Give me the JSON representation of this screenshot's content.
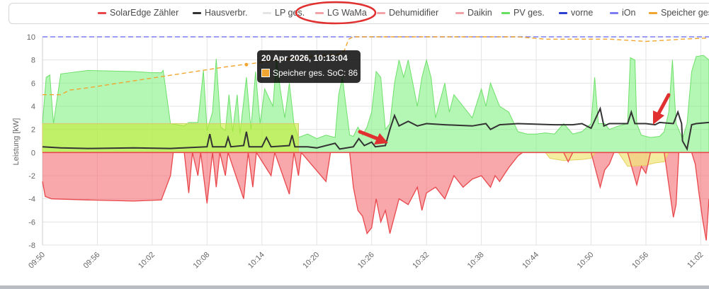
{
  "chart_data": {
    "type": "area",
    "ylabel": "Leistung [kW]",
    "ylim": [
      -8,
      10
    ],
    "y_ticks": [
      "10",
      "8",
      "6",
      "4",
      "2",
      "0",
      "-2",
      "-4",
      "-6",
      "-8"
    ],
    "x_ticks": [
      "09:50",
      "09:56",
      "10:02",
      "10:08",
      "10:14",
      "10:20",
      "10:26",
      "10:32",
      "10:38",
      "10:44",
      "10:50",
      "10:56",
      "11:02"
    ],
    "x_range_minutes": [
      0,
      72.9
    ],
    "grid": true,
    "legend_position": "top",
    "series": [
      {
        "name": "SolarEdge Zähler",
        "color": "#e8474c",
        "kind": "grid-area",
        "points": [
          [
            0,
            -2.5
          ],
          [
            0.3,
            -3.8
          ],
          [
            1,
            -4.0
          ],
          [
            5,
            -4.1
          ],
          [
            10,
            -4.2
          ],
          [
            13,
            -4.1
          ],
          [
            14,
            -2
          ],
          [
            14.3,
            0
          ],
          [
            15.5,
            0
          ],
          [
            16,
            -3.5
          ],
          [
            16.4,
            0
          ],
          [
            17,
            -2
          ],
          [
            17.3,
            0
          ],
          [
            18,
            -4.4
          ],
          [
            18.6,
            0
          ],
          [
            19,
            -3
          ],
          [
            19.4,
            0
          ],
          [
            20,
            -2
          ],
          [
            20.3,
            0
          ],
          [
            22,
            -4
          ],
          [
            22.5,
            0
          ],
          [
            23,
            -3
          ],
          [
            23.4,
            0
          ],
          [
            25,
            -2
          ],
          [
            25.4,
            0
          ],
          [
            27,
            -3.6
          ],
          [
            27.5,
            0
          ],
          [
            28,
            -2
          ],
          [
            28.3,
            0
          ],
          [
            31,
            -2.5
          ],
          [
            31.5,
            0
          ],
          [
            33.6,
            0
          ],
          [
            34,
            -3
          ],
          [
            34.5,
            -5
          ],
          [
            35,
            -5.5
          ],
          [
            35.5,
            -7
          ],
          [
            36,
            -6.5
          ],
          [
            36.5,
            -4
          ],
          [
            37,
            -6
          ],
          [
            37.5,
            -5
          ],
          [
            38,
            -7
          ],
          [
            39,
            -4
          ],
          [
            40,
            -4.5
          ],
          [
            41,
            -3
          ],
          [
            41.5,
            -5
          ],
          [
            42,
            -3.5
          ],
          [
            43,
            -3
          ],
          [
            44,
            -4
          ],
          [
            45,
            -2
          ],
          [
            46,
            -3
          ],
          [
            47,
            -2.3
          ],
          [
            48,
            -2
          ],
          [
            49,
            -3
          ],
          [
            49.5,
            -2
          ],
          [
            50,
            -2.5
          ],
          [
            51,
            -1.3
          ],
          [
            52,
            -0.3
          ],
          [
            52.5,
            0
          ],
          [
            57,
            0
          ],
          [
            57.5,
            -0.8
          ],
          [
            58,
            0
          ],
          [
            60,
            0
          ],
          [
            61,
            -3
          ],
          [
            61.5,
            -1.5
          ],
          [
            62,
            -1
          ],
          [
            62.5,
            0
          ],
          [
            64,
            0
          ],
          [
            65,
            -2.8
          ],
          [
            65.5,
            -1.2
          ],
          [
            66,
            -1.8
          ],
          [
            66.5,
            0
          ],
          [
            68,
            0
          ],
          [
            69,
            -5.6
          ],
          [
            69.3,
            -4.5
          ],
          [
            69.6,
            0
          ],
          [
            71,
            0
          ],
          [
            71.4,
            -1
          ],
          [
            71.8,
            -3.5
          ],
          [
            72.2,
            -5.8
          ],
          [
            72.6,
            -7.6
          ],
          [
            72.9,
            -4
          ]
        ]
      },
      {
        "name": "Hausverbr.",
        "color": "#333333",
        "kind": "line",
        "points": [
          [
            0,
            0.5
          ],
          [
            2,
            0.4
          ],
          [
            5,
            0.35
          ],
          [
            10,
            0.4
          ],
          [
            14,
            0.35
          ],
          [
            18,
            0.5
          ],
          [
            18.3,
            1.6
          ],
          [
            18.6,
            0.5
          ],
          [
            20,
            0.5
          ],
          [
            20.3,
            1.3
          ],
          [
            20.6,
            0.5
          ],
          [
            22,
            0.6
          ],
          [
            22.3,
            1.8
          ],
          [
            22.6,
            0.5
          ],
          [
            24,
            0.5
          ],
          [
            24.5,
            1.3
          ],
          [
            25,
            0.5
          ],
          [
            27,
            0.6
          ],
          [
            27.3,
            1.5
          ],
          [
            27.6,
            0.5
          ],
          [
            29,
            0.5
          ],
          [
            30,
            0.4
          ],
          [
            32,
            0.8
          ],
          [
            32.5,
            0.3
          ],
          [
            34,
            0.5
          ],
          [
            34.6,
            1.2
          ],
          [
            35.2,
            0.6
          ],
          [
            36,
            0.9
          ],
          [
            36.4,
            0.5
          ],
          [
            37.5,
            0.6
          ],
          [
            38,
            2.0
          ],
          [
            38.5,
            3.2
          ],
          [
            39,
            2.3
          ],
          [
            40,
            2.7
          ],
          [
            41,
            2.3
          ],
          [
            42,
            2.5
          ],
          [
            44,
            2.4
          ],
          [
            47,
            2.3
          ],
          [
            48.5,
            2.5
          ],
          [
            49,
            2.0
          ],
          [
            50,
            2.4
          ],
          [
            52,
            2.5
          ],
          [
            56,
            2.4
          ],
          [
            58,
            2.4
          ],
          [
            59,
            2.5
          ],
          [
            60,
            2.1
          ],
          [
            61,
            3.8
          ],
          [
            61.4,
            2.3
          ],
          [
            62,
            2.5
          ],
          [
            64,
            2.5
          ],
          [
            64.4,
            3.5
          ],
          [
            64.8,
            2.5
          ],
          [
            66,
            2.5
          ],
          [
            67,
            2.4
          ],
          [
            67.5,
            2.6
          ],
          [
            69,
            2.5
          ],
          [
            69.5,
            3.5
          ],
          [
            69.9,
            2.5
          ],
          [
            70,
            1.0
          ],
          [
            70.5,
            0.3
          ],
          [
            71,
            2.4
          ],
          [
            71.5,
            2.5
          ],
          [
            72.9,
            2.6
          ]
        ]
      },
      {
        "name": "LP ges.",
        "color": "#e4e4e4",
        "kind": "line",
        "points": []
      },
      {
        "name": "LG WaMa",
        "color": "#f2a3a8",
        "kind": "line",
        "points": []
      },
      {
        "name": "Dehumidifier",
        "color": "#f2a3a8",
        "kind": "line",
        "points": []
      },
      {
        "name": "Daikin",
        "color": "#f2a3a8",
        "kind": "area",
        "points": [
          [
            0,
            0
          ],
          [
            0,
            2.5
          ],
          [
            28,
            2.5
          ],
          [
            28,
            0
          ]
        ]
      },
      {
        "name": "PV ges.",
        "color": "#66e060",
        "kind": "area",
        "points": [
          [
            0,
            2.5
          ],
          [
            0.4,
            6.5
          ],
          [
            0.8,
            6.7
          ],
          [
            1.2,
            2.5
          ],
          [
            2,
            6.8
          ],
          [
            5,
            7.1
          ],
          [
            10,
            7.0
          ],
          [
            12,
            6.9
          ],
          [
            13,
            6.9
          ],
          [
            13.2,
            7.1
          ],
          [
            14,
            2.5
          ],
          [
            15.5,
            2.3
          ],
          [
            16,
            2.6
          ],
          [
            17,
            2.6
          ],
          [
            17.6,
            7.1
          ],
          [
            18,
            1.9
          ],
          [
            18.6,
            3.5
          ],
          [
            19,
            8.1
          ],
          [
            19.5,
            2.2
          ],
          [
            20,
            1.9
          ],
          [
            20.4,
            5
          ],
          [
            20.8,
            1.8
          ],
          [
            21.3,
            5
          ],
          [
            21.6,
            1.6
          ],
          [
            22.3,
            6.5
          ],
          [
            22.8,
            2
          ],
          [
            23.3,
            7
          ],
          [
            23.8,
            2.5
          ],
          [
            24.3,
            5.5
          ],
          [
            25.2,
            4
          ],
          [
            25.6,
            8
          ],
          [
            26,
            5.5
          ],
          [
            26.5,
            3
          ],
          [
            27,
            6
          ],
          [
            27.5,
            2.5
          ],
          [
            28,
            1.3
          ],
          [
            29,
            1.6
          ],
          [
            30,
            1.2
          ],
          [
            31,
            1.5
          ],
          [
            32,
            1.3
          ],
          [
            32.4,
            5
          ],
          [
            32.8,
            6.5
          ],
          [
            33.2,
            4
          ],
          [
            33.6,
            1.5
          ],
          [
            34,
            1.4
          ],
          [
            34.5,
            2.2
          ],
          [
            35,
            1.5
          ],
          [
            35.5,
            2.2
          ],
          [
            36,
            3.5
          ],
          [
            36.5,
            7
          ],
          [
            37,
            6.5
          ],
          [
            37.5,
            2
          ],
          [
            38,
            2.5
          ],
          [
            38.5,
            6
          ],
          [
            39,
            8
          ],
          [
            39.5,
            6.5
          ],
          [
            40,
            8
          ],
          [
            40.5,
            6
          ],
          [
            41,
            4
          ],
          [
            41.5,
            6.5
          ],
          [
            42,
            8
          ],
          [
            42.5,
            6.5
          ],
          [
            43,
            3
          ],
          [
            44,
            6
          ],
          [
            44.5,
            3.5
          ],
          [
            45,
            5
          ],
          [
            46,
            4
          ],
          [
            47,
            3
          ],
          [
            48,
            5.5
          ],
          [
            48.5,
            4
          ],
          [
            49,
            6
          ],
          [
            50,
            4
          ],
          [
            51,
            3.5
          ],
          [
            52,
            1.8
          ],
          [
            53,
            1.6
          ],
          [
            54,
            1.6
          ],
          [
            55,
            1.7
          ],
          [
            56,
            1.6
          ],
          [
            57,
            2.5
          ],
          [
            58,
            1.6
          ],
          [
            59,
            1.8
          ],
          [
            60,
            2.5
          ],
          [
            60.4,
            6.5
          ],
          [
            60.8,
            2.5
          ],
          [
            61.5,
            2.5
          ],
          [
            62,
            2
          ],
          [
            63,
            2.3
          ],
          [
            64,
            2.5
          ],
          [
            64.3,
            8.2
          ],
          [
            64.8,
            8
          ],
          [
            65,
            2.5
          ],
          [
            65.5,
            1.5
          ],
          [
            66.5,
            1.3
          ],
          [
            67.5,
            1.4
          ],
          [
            68,
            1.8
          ],
          [
            68.5,
            3.5
          ],
          [
            68.9,
            8
          ],
          [
            69.3,
            2.5
          ],
          [
            70,
            1.2
          ],
          [
            70.5,
            2.5
          ],
          [
            71,
            7
          ],
          [
            71.5,
            8.3
          ],
          [
            72.3,
            8.4
          ],
          [
            72.9,
            8
          ]
        ]
      },
      {
        "name": "vorne",
        "color": "#2b3fd1",
        "kind": "line",
        "points": [
          [
            0,
            10
          ],
          [
            72.9,
            10
          ]
        ]
      },
      {
        "name": "iOn",
        "color": "#7d7df2",
        "kind": "dashed",
        "points": [
          [
            0,
            10
          ],
          [
            72.9,
            10
          ]
        ]
      },
      {
        "name": "Speicher ges.",
        "color": "#f0a630",
        "kind": "dashed",
        "points": [
          [
            0,
            5.0
          ],
          [
            2,
            5.0
          ],
          [
            3,
            5.4
          ],
          [
            5,
            5.6
          ],
          [
            10,
            6.2
          ],
          [
            15,
            6.8
          ],
          [
            20,
            7.4
          ],
          [
            24,
            7.8
          ],
          [
            27,
            8.1
          ],
          [
            31,
            8.4
          ],
          [
            32.5,
            8.5
          ],
          [
            33,
            8.8
          ],
          [
            33.5,
            9.8
          ],
          [
            34,
            10
          ],
          [
            48,
            10
          ],
          [
            52,
            10
          ],
          [
            55,
            9.8
          ],
          [
            62,
            9.8
          ],
          [
            66,
            9.6
          ],
          [
            70,
            9.8
          ],
          [
            72.9,
            9.9
          ]
        ]
      }
    ]
  },
  "legend": [
    {
      "label": "SolarEdge Zähler",
      "color": "#e8474c"
    },
    {
      "label": "Hausverbr.",
      "color": "#333333"
    },
    {
      "label": "LP ges.",
      "color": "#e4e4e4"
    },
    {
      "label": "LG WaMa",
      "color": "#f2a3a8"
    },
    {
      "label": "Dehumidifier",
      "color": "#f2a3a8"
    },
    {
      "label": "Daikin",
      "color": "#f2a3a8"
    },
    {
      "label": "PV ges.",
      "color": "#66e060"
    },
    {
      "label": "vorne",
      "color": "#2b3fd1"
    },
    {
      "label": "iOn",
      "color": "#7d7df2"
    },
    {
      "label": "Speicher ges.",
      "color": "#f0a630"
    }
  ],
  "tooltip": {
    "title": "20 Apr 2026, 10:13:04",
    "label": "Speicher ges. SoC: 86",
    "swatch_color": "#f0a630"
  },
  "annotations": {
    "ellipse_target": "LG WaMa",
    "ellipse_color": "#e03030",
    "arrow_color": "#e03030"
  }
}
